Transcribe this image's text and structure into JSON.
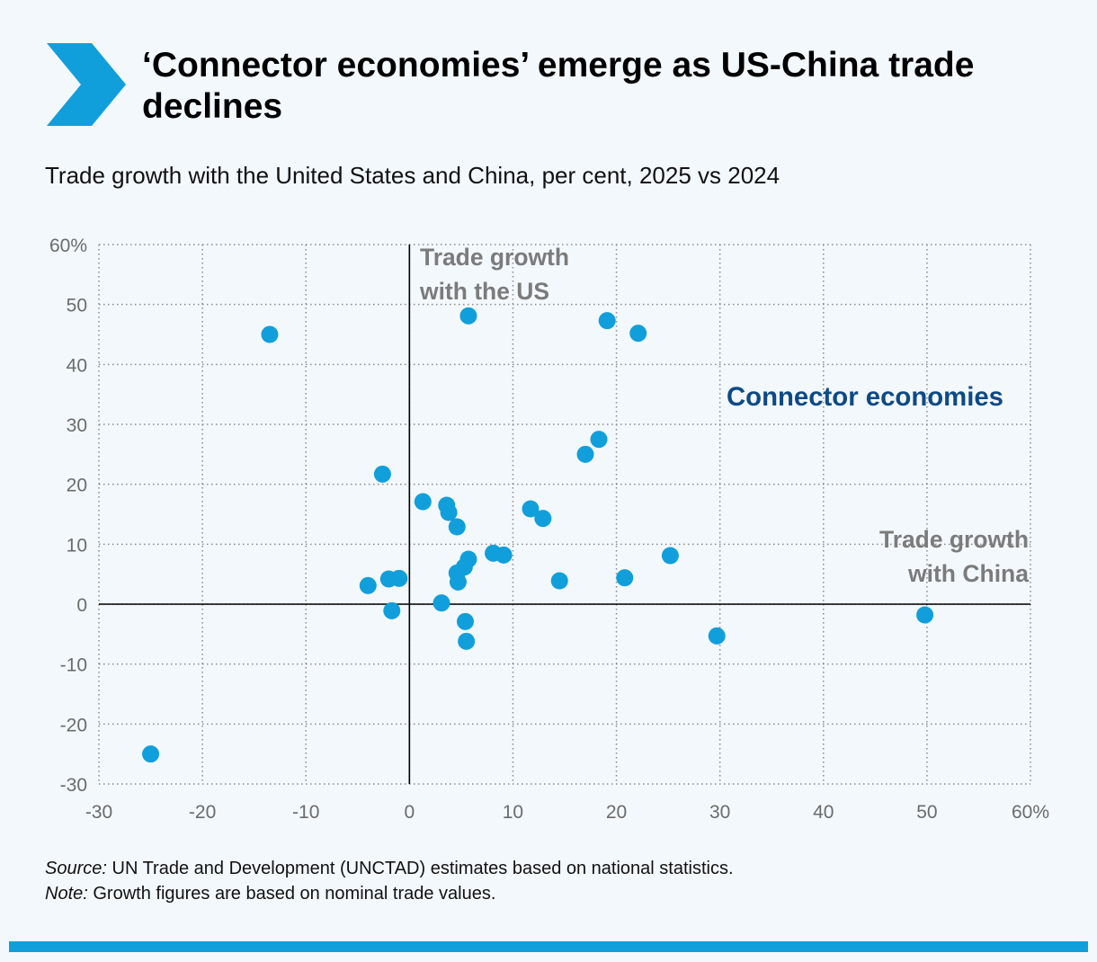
{
  "title": "‘Connector economies’ emerge as US-China trade declines",
  "subtitle": "Trade growth with the United States and China, per cent, 2025 vs 2024",
  "footer": {
    "source_label": "Source:",
    "source_text": "UN Trade and Development (UNCTAD) estimates based on national statistics.",
    "note_label": "Note:",
    "note_text": "Growth figures are based on nominal trade values."
  },
  "colors": {
    "accent": "#109fdb",
    "annotation_dark": "#0d4a85",
    "annotation_gray": "#7b7b7b",
    "background": "#f3f8fc"
  },
  "icon": "chevron-right-icon",
  "chart_data": {
    "type": "scatter",
    "xlim": [
      -30,
      60
    ],
    "ylim": [
      -30,
      60
    ],
    "xticks": [
      "-30",
      "-20",
      "-10",
      "0",
      "10",
      "20",
      "30",
      "40",
      "50",
      "60%"
    ],
    "yticks": [
      "60%",
      "50",
      "40",
      "30",
      "20",
      "10",
      "0",
      "-10",
      "-20",
      "-30"
    ],
    "grid": true,
    "annotations": {
      "us_axis": [
        "Trade growth",
        "with the US"
      ],
      "china_axis": [
        "Trade growth",
        "with China"
      ],
      "quadrant": "Connector economies"
    },
    "points": [
      {
        "x": -25,
        "y": -25
      },
      {
        "x": -13.5,
        "y": 45
      },
      {
        "x": -2.6,
        "y": 21.7
      },
      {
        "x": -4,
        "y": 3.1
      },
      {
        "x": -2,
        "y": 4.2
      },
      {
        "x": -1,
        "y": 4.3
      },
      {
        "x": -1.7,
        "y": -1.1
      },
      {
        "x": 1.3,
        "y": 17.1
      },
      {
        "x": 3.6,
        "y": 16.5
      },
      {
        "x": 3.8,
        "y": 15.3
      },
      {
        "x": 4.6,
        "y": 12.9
      },
      {
        "x": 3.1,
        "y": 0.2
      },
      {
        "x": 4.6,
        "y": 5.2
      },
      {
        "x": 4.7,
        "y": 3.7
      },
      {
        "x": 5.3,
        "y": 6.2
      },
      {
        "x": 5.7,
        "y": 7.5
      },
      {
        "x": 5.4,
        "y": -2.9
      },
      {
        "x": 5.5,
        "y": -6.2
      },
      {
        "x": 5.7,
        "y": 48.1
      },
      {
        "x": 8.1,
        "y": 8.5
      },
      {
        "x": 9.1,
        "y": 8.2
      },
      {
        "x": 11.7,
        "y": 15.9
      },
      {
        "x": 12.9,
        "y": 14.3
      },
      {
        "x": 14.5,
        "y": 3.9
      },
      {
        "x": 17,
        "y": 25
      },
      {
        "x": 18.3,
        "y": 27.5
      },
      {
        "x": 19.1,
        "y": 47.3
      },
      {
        "x": 20.8,
        "y": 4.4
      },
      {
        "x": 22.1,
        "y": 45.2
      },
      {
        "x": 25.2,
        "y": 8.1
      },
      {
        "x": 29.7,
        "y": -5.3
      },
      {
        "x": 49.8,
        "y": -1.8
      }
    ]
  }
}
